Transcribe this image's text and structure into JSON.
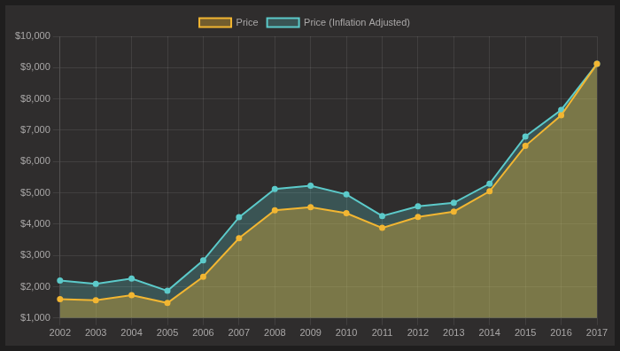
{
  "chart_data": {
    "type": "line",
    "categories": [
      "2002",
      "2003",
      "2004",
      "2005",
      "2006",
      "2007",
      "2008",
      "2009",
      "2010",
      "2011",
      "2012",
      "2013",
      "2014",
      "2015",
      "2016",
      "2017"
    ],
    "series": [
      {
        "name": "Price",
        "color": "#f2b632",
        "marker": "circle",
        "line_style": "solid",
        "values": [
          1600,
          1570,
          1730,
          1480,
          2320,
          3550,
          4440,
          4540,
          4350,
          3880,
          4230,
          4400,
          5050,
          6500,
          7480,
          9120
        ]
      },
      {
        "name": "Price (Inflation Adjusted)",
        "color": "#5ccaca",
        "marker": "circle",
        "line_style": "solid",
        "values": [
          2200,
          2090,
          2260,
          1870,
          2840,
          4220,
          5120,
          5230,
          4950,
          4260,
          4570,
          4680,
          5290,
          6800,
          7650,
          9120
        ]
      }
    ],
    "ylim": [
      1000,
      10000
    ],
    "yticks": [
      {
        "value": 1000,
        "label": "$1,000"
      },
      {
        "value": 2000,
        "label": "$2,000"
      },
      {
        "value": 3000,
        "label": "$3,000"
      },
      {
        "value": 4000,
        "label": "$4,000"
      },
      {
        "value": 5000,
        "label": "$5,000"
      },
      {
        "value": 6000,
        "label": "$6,000"
      },
      {
        "value": 7000,
        "label": "$7,000"
      },
      {
        "value": 8000,
        "label": "$8,000"
      },
      {
        "value": 9000,
        "label": "$9,000"
      },
      {
        "value": 10000,
        "label": "$10,000"
      }
    ],
    "grid": true,
    "legend": "top"
  }
}
